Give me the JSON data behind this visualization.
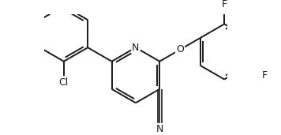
{
  "bond_color": "#1a1a1a",
  "bg_color": "#ffffff",
  "bond_width": 1.4,
  "font_size": 9,
  "fig_width": 3.56,
  "fig_height": 1.71,
  "dpi": 100,
  "xlim": [
    -2.8,
    3.8
  ],
  "ylim": [
    -2.0,
    2.2
  ]
}
